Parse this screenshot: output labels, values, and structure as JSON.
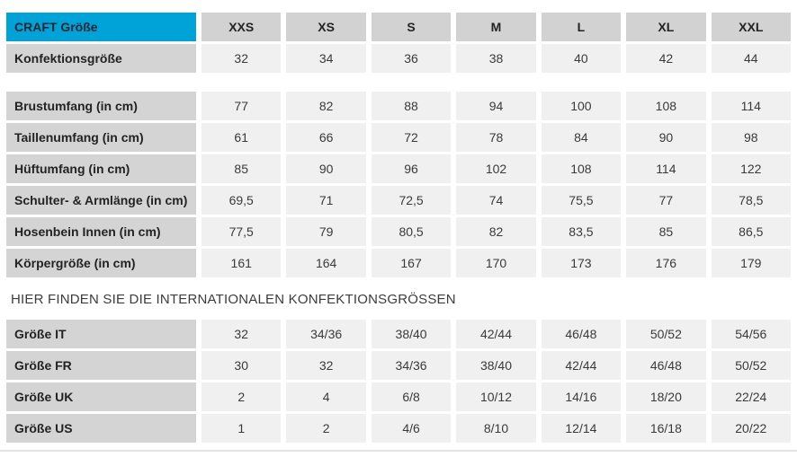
{
  "colors": {
    "accent_blue": "#00a3d7",
    "header_gray": "#d2d2d2",
    "label_gray": "#d4d4d4",
    "value_cell_gray": "#f0f0f0",
    "divider_gray": "#e3e3e3",
    "text_dark": "#232323"
  },
  "main_table": {
    "corner_label": "CRAFT Größe",
    "size_headers": [
      "XXS",
      "XS",
      "S",
      "M",
      "L",
      "XL",
      "XXL"
    ],
    "rows": [
      {
        "label": "Konfektionsgröße",
        "values": [
          "32",
          "34",
          "36",
          "38",
          "40",
          "42",
          "44"
        ],
        "gap_after": true
      },
      {
        "label": "Brustumfang (in cm)",
        "values": [
          "77",
          "82",
          "88",
          "94",
          "100",
          "108",
          "114"
        ]
      },
      {
        "label": "Taillenumfang (in cm)",
        "values": [
          "61",
          "66",
          "72",
          "78",
          "84",
          "90",
          "98"
        ]
      },
      {
        "label": "Hüftumfang (in cm)",
        "values": [
          "85",
          "90",
          "96",
          "102",
          "108",
          "114",
          "122"
        ]
      },
      {
        "label": "Schulter- & Armlänge (in cm)",
        "values": [
          "69,5",
          "71",
          "72,5",
          "74",
          "75,5",
          "77",
          "78,5"
        ]
      },
      {
        "label": "Hosenbein Innen (in cm)",
        "values": [
          "77,5",
          "79",
          "80,5",
          "82",
          "83,5",
          "85",
          "86,5"
        ]
      },
      {
        "label": "Körpergröße (in cm)",
        "values": [
          "161",
          "164",
          "167",
          "170",
          "173",
          "176",
          "179"
        ]
      }
    ]
  },
  "international_heading": "HIER FINDEN SIE DIE INTERNATIONALEN KONFEKTIONSGRÖSSEN",
  "international_table": {
    "rows": [
      {
        "label": "Größe IT",
        "values": [
          "32",
          "34/36",
          "38/40",
          "42/44",
          "46/48",
          "50/52",
          "54/56"
        ]
      },
      {
        "label": "Größe FR",
        "values": [
          "30",
          "32",
          "34/36",
          "38/40",
          "42/44",
          "46/48",
          "50/52"
        ]
      },
      {
        "label": "Größe UK",
        "values": [
          "2",
          "4",
          "6/8",
          "10/12",
          "14/16",
          "18/20",
          "22/24"
        ]
      },
      {
        "label": "Größe US",
        "values": [
          "1",
          "2",
          "4/6",
          "8/10",
          "12/14",
          "16/18",
          "20/22"
        ]
      }
    ]
  }
}
